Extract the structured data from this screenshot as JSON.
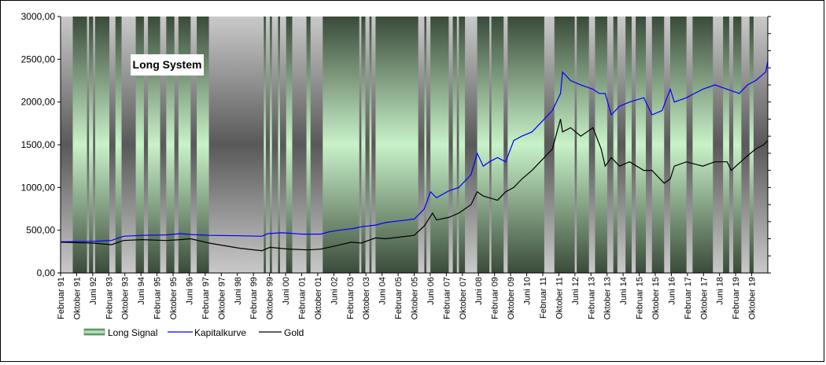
{
  "chart_data": {
    "type": "line",
    "title": "Long System",
    "y_tick_labels": [
      "0,00",
      "500,00",
      "1000,00",
      "1500,00",
      "2000,00",
      "2500,00",
      "3000,00"
    ],
    "ylim": [
      0,
      3000
    ],
    "x_range": [
      "1991-02",
      "2020-02"
    ],
    "x_tick_labels": [
      "Februar 91",
      "Oktober 91",
      "Juni 92",
      "Februar 93",
      "Oktober 93",
      "Juni 94",
      "Februar 95",
      "Oktober 95",
      "Juni 96",
      "Februar 97",
      "Oktober 97",
      "Juni 98",
      "Februar 99",
      "Oktober 99",
      "Juni 00",
      "Februar 01",
      "Oktober 01",
      "Juni 02",
      "Februar 03",
      "Oktober 03",
      "Juni 04",
      "Februar 05",
      "Oktober 05",
      "Juni 06",
      "Februar 07",
      "Oktober 07",
      "Juni 08",
      "Februar 09",
      "Oktober 09",
      "Juni 10",
      "Februar 11",
      "Oktober 11",
      "Juni 12",
      "Februar 13",
      "Oktober 13",
      "Juni 14",
      "Februar 15",
      "Oktober 15",
      "Juni 16",
      "Februar 17",
      "Oktober 17",
      "Juni 18",
      "Februar 19",
      "Oktober 19"
    ],
    "grid": false,
    "legend_position": "bottom-left",
    "colors": {
      "kapitalkurve": "#0000ff",
      "gold": "#000000",
      "signal": "#5ec77a",
      "off": "#8a8a8a"
    },
    "series": [
      {
        "name": "Long Signal",
        "kind": "band",
        "on_periods": [
          [
            "1991-08",
            "1992-03"
          ],
          [
            "1992-04",
            "1992-06"
          ],
          [
            "1992-07",
            "1993-02"
          ],
          [
            "1993-05",
            "1993-08"
          ],
          [
            "1994-03",
            "1994-07"
          ],
          [
            "1994-09",
            "1995-03"
          ],
          [
            "1995-06",
            "1995-10"
          ],
          [
            "1995-12",
            "1996-06"
          ],
          [
            "1996-09",
            "1997-03"
          ],
          [
            "1999-06",
            "1999-07"
          ],
          [
            "1999-09",
            "1999-10"
          ],
          [
            "2000-01",
            "2000-02"
          ],
          [
            "2000-05",
            "2000-08"
          ],
          [
            "2001-03",
            "2001-05"
          ],
          [
            "2001-11",
            "2003-05"
          ],
          [
            "2003-06",
            "2003-08"
          ],
          [
            "2003-10",
            "2003-11"
          ],
          [
            "2004-01",
            "2005-10"
          ],
          [
            "2006-01",
            "2006-02"
          ],
          [
            "2006-04",
            "2007-01"
          ],
          [
            "2007-03",
            "2007-05"
          ],
          [
            "2007-06",
            "2007-09"
          ],
          [
            "2008-03",
            "2008-09"
          ],
          [
            "2008-10",
            "2009-04"
          ],
          [
            "2009-06",
            "2010-12"
          ],
          [
            "2011-05",
            "2012-03"
          ],
          [
            "2012-04",
            "2012-10"
          ],
          [
            "2013-01",
            "2013-07"
          ],
          [
            "2013-10",
            "2013-12"
          ],
          [
            "2014-04",
            "2014-07"
          ],
          [
            "2014-09",
            "2015-02"
          ],
          [
            "2015-05",
            "2015-11"
          ],
          [
            "2016-02",
            "2016-10"
          ],
          [
            "2017-01",
            "2017-11"
          ],
          [
            "2018-04",
            "2018-07"
          ],
          [
            "2018-09",
            "2019-01"
          ],
          [
            "2019-05",
            "2019-07"
          ]
        ]
      },
      {
        "name": "Kapitalkurve",
        "x": [
          "1991-02",
          "1992-06",
          "1993-03",
          "1993-09",
          "1994-06",
          "1995-06",
          "1996-01",
          "1996-06",
          "1997-03",
          "1998-06",
          "1999-05",
          "1999-08",
          "2000-03",
          "2001-01",
          "2001-10",
          "2002-02",
          "2002-07",
          "2003-02",
          "2003-06",
          "2004-01",
          "2004-06",
          "2005-01",
          "2005-08",
          "2006-01",
          "2006-04",
          "2006-07",
          "2007-01",
          "2007-06",
          "2007-12",
          "2008-03",
          "2008-06",
          "2008-09",
          "2009-01",
          "2009-05",
          "2009-09",
          "2010-01",
          "2010-06",
          "2010-12",
          "2011-04",
          "2011-08",
          "2011-09",
          "2012-01",
          "2012-06",
          "2012-12",
          "2013-03",
          "2013-06",
          "2013-09",
          "2014-01",
          "2014-06",
          "2015-01",
          "2015-05",
          "2015-10",
          "2016-02",
          "2016-04",
          "2016-10",
          "2017-06",
          "2017-12",
          "2018-06",
          "2018-12",
          "2019-04",
          "2019-08",
          "2020-01",
          "2020-02"
        ],
        "values": [
          365,
          370,
          380,
          430,
          440,
          445,
          460,
          450,
          440,
          435,
          430,
          460,
          470,
          455,
          455,
          480,
          500,
          520,
          540,
          560,
          590,
          610,
          630,
          750,
          950,
          880,
          960,
          1000,
          1150,
          1400,
          1250,
          1300,
          1350,
          1300,
          1550,
          1600,
          1650,
          1800,
          1900,
          2100,
          2350,
          2250,
          2200,
          2150,
          2100,
          2100,
          1850,
          1950,
          2000,
          2050,
          1850,
          1900,
          2150,
          2000,
          2050,
          2150,
          2200,
          2150,
          2100,
          2200,
          2250,
          2350,
          2480
        ]
      },
      {
        "name": "Gold",
        "x": [
          "1991-02",
          "1992-06",
          "1993-03",
          "1993-09",
          "1994-06",
          "1995-06",
          "1996-01",
          "1996-06",
          "1997-03",
          "1998-06",
          "1999-05",
          "1999-09",
          "2000-06",
          "2001-04",
          "2001-10",
          "2002-06",
          "2003-01",
          "2003-06",
          "2004-01",
          "2004-06",
          "2005-01",
          "2005-08",
          "2006-01",
          "2006-05",
          "2006-07",
          "2007-01",
          "2007-06",
          "2007-12",
          "2008-03",
          "2008-06",
          "2008-09",
          "2009-01",
          "2009-05",
          "2009-09",
          "2010-01",
          "2010-06",
          "2010-12",
          "2011-04",
          "2011-08",
          "2011-09",
          "2012-01",
          "2012-06",
          "2012-12",
          "2013-04",
          "2013-06",
          "2013-09",
          "2014-01",
          "2014-06",
          "2015-01",
          "2015-05",
          "2015-11",
          "2016-02",
          "2016-04",
          "2016-10",
          "2017-06",
          "2017-12",
          "2018-06",
          "2018-08",
          "2019-03",
          "2019-08",
          "2019-12",
          "2020-02"
        ],
        "values": [
          360,
          350,
          330,
          380,
          390,
          380,
          390,
          400,
          350,
          290,
          260,
          300,
          280,
          270,
          280,
          320,
          360,
          350,
          410,
          400,
          420,
          440,
          550,
          700,
          620,
          650,
          700,
          800,
          950,
          900,
          880,
          850,
          950,
          1000,
          1100,
          1200,
          1350,
          1450,
          1800,
          1650,
          1700,
          1600,
          1700,
          1450,
          1250,
          1350,
          1250,
          1300,
          1200,
          1200,
          1050,
          1100,
          1250,
          1300,
          1250,
          1300,
          1300,
          1200,
          1350,
          1450,
          1500,
          1550
        ]
      }
    ]
  }
}
